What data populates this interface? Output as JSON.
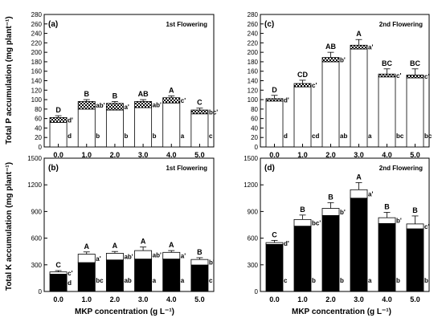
{
  "figure": {
    "y_label_top": "Total P accumulation (mg plant⁻¹)",
    "y_label_bottom": "Total K accumulation (mg plant⁻¹)",
    "x_label": "MKP concentration (g L⁻¹)"
  },
  "chart_data": [
    {
      "panel": "(a)",
      "title": "1st Flowering",
      "type": "bar",
      "categories": [
        "0.0",
        "1.0",
        "2.0",
        "3.0",
        "4.0",
        "5.0"
      ],
      "yticks": [
        "0",
        "20",
        "40",
        "60",
        "80",
        "100",
        "120",
        "140",
        "160",
        "180",
        "200",
        "220",
        "240",
        "260",
        "280"
      ],
      "ylim": [
        0,
        280
      ],
      "bottom_fill": "white",
      "top_fill": "checker",
      "bottom_values": [
        52,
        80,
        78,
        83,
        93,
        70
      ],
      "top_values": [
        10,
        16,
        14,
        13,
        11,
        8
      ],
      "error": [
        4,
        4,
        4,
        4,
        4,
        4
      ],
      "total_letters": [
        "D",
        "B",
        "B",
        "AB",
        "A",
        "C"
      ],
      "top_letters": [
        "d'",
        "ab'",
        "a'",
        "ab'",
        "c'",
        "bc'"
      ],
      "bottom_letters": [
        "d",
        "b",
        "b",
        "b",
        "a",
        "c"
      ]
    },
    {
      "panel": "(c)",
      "title": "2nd Flowering",
      "type": "bar",
      "categories": [
        "0.0",
        "1.0",
        "2.0",
        "3.0",
        "4.0",
        "5.0"
      ],
      "yticks": [
        "0",
        "20",
        "40",
        "60",
        "80",
        "100",
        "120",
        "140",
        "160",
        "180",
        "200",
        "220",
        "240",
        "260",
        "280"
      ],
      "ylim": [
        0,
        280
      ],
      "bottom_fill": "white",
      "top_fill": "checker",
      "bottom_values": [
        97,
        127,
        180,
        207,
        148,
        146
      ],
      "top_values": [
        5,
        7,
        9,
        8,
        6,
        6
      ],
      "error": [
        7,
        7,
        11,
        12,
        11,
        13
      ],
      "total_letters": [
        "D",
        "CD",
        "AB",
        "A",
        "BC",
        "BC"
      ],
      "top_letters": [
        "d'",
        "c'",
        "b'",
        "a'",
        "c'",
        "c'"
      ],
      "bottom_letters": [
        "d",
        "cd",
        "ab",
        "a",
        "bc",
        "bc"
      ]
    },
    {
      "panel": "(b)",
      "title": "1st Flowering",
      "type": "bar",
      "categories": [
        "0.0",
        "1.0",
        "2.0",
        "3.0",
        "4.0",
        "5.0"
      ],
      "yticks": [
        "0",
        "300",
        "600",
        "900",
        "1200",
        "1500"
      ],
      "ylim": [
        0,
        1500
      ],
      "bottom_fill": "black",
      "top_fill": "white",
      "bottom_values": [
        195,
        325,
        355,
        365,
        365,
        298
      ],
      "top_values": [
        25,
        95,
        75,
        95,
        75,
        62
      ],
      "error": [
        15,
        25,
        20,
        40,
        20,
        20
      ],
      "total_letters": [
        "C",
        "A",
        "A",
        "A",
        "A",
        "B"
      ],
      "top_letters": [
        "c'",
        "a'",
        "ab'",
        "ab'",
        "a'",
        "b'"
      ],
      "bottom_letters": [
        "d",
        "bc",
        "ab",
        "a",
        "a",
        "c"
      ]
    },
    {
      "panel": "(d)",
      "title": "2nd Flowering",
      "type": "bar",
      "categories": [
        "0.0",
        "1.0",
        "2.0",
        "3.0",
        "4.0",
        "5.0"
      ],
      "yticks": [
        "0",
        "300",
        "600",
        "900",
        "1200",
        "1500"
      ],
      "ylim": [
        0,
        1500
      ],
      "bottom_fill": "black",
      "top_fill": "white",
      "bottom_values": [
        530,
        735,
        855,
        1050,
        765,
        705
      ],
      "top_values": [
        20,
        75,
        80,
        95,
        65,
        55
      ],
      "error": [
        25,
        50,
        65,
        80,
        60,
        90
      ],
      "total_letters": [
        "C",
        "B",
        "B",
        "A",
        "B",
        "B"
      ],
      "top_letters": [
        "d'",
        "bc'",
        "b'",
        "a'",
        "b'",
        "c'"
      ],
      "bottom_letters": [
        "c",
        "b",
        "b",
        "a",
        "b",
        "b"
      ]
    }
  ]
}
